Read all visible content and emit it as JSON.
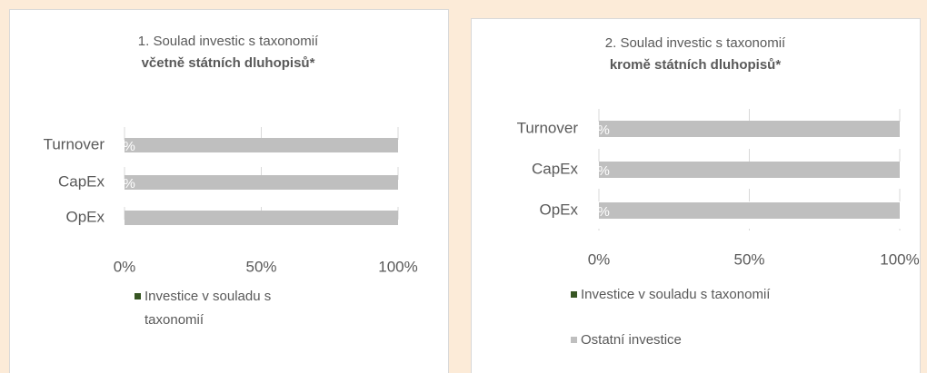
{
  "chart_data": [
    {
      "type": "bar",
      "orientation": "horizontal",
      "stacked": true,
      "title": "1. Soulad investic s taxonomií",
      "subtitle": "včetně státních dluhopisů*",
      "categories": [
        "Turnover",
        "CapEx",
        "OpEx"
      ],
      "series": [
        {
          "name": "Investice v souladu s taxonomií",
          "color": "#375623",
          "values": [
            0,
            0,
            0
          ],
          "value_labels": [
            "0%",
            "0%",
            null
          ]
        },
        {
          "color": "#bfbfbf",
          "values": [
            100,
            100,
            100
          ]
        }
      ],
      "xlim": [
        0,
        100
      ],
      "xticks": [
        {
          "value": 0,
          "label": "0%"
        },
        {
          "value": 50,
          "label": "50%"
        },
        {
          "value": 100,
          "label": "100%"
        }
      ],
      "grid": true,
      "legend": "bottom"
    },
    {
      "type": "bar",
      "orientation": "horizontal",
      "stacked": true,
      "title": "2. Soulad investic s taxonomií",
      "subtitle": "kromě státních dluhopisů*",
      "categories": [
        "Turnover",
        "CapEx",
        "OpEx"
      ],
      "series": [
        {
          "name": "Investice v souladu s taxonomií",
          "color": "#375623",
          "values": [
            0,
            0,
            0
          ],
          "value_labels": [
            "0%",
            "0%",
            "0%"
          ]
        },
        {
          "name": "Ostatní investice",
          "color": "#bfbfbf",
          "values": [
            100,
            100,
            100
          ]
        }
      ],
      "xlim": [
        0,
        100
      ],
      "xticks": [
        {
          "value": 0,
          "label": "0%"
        },
        {
          "value": 50,
          "label": "50%"
        },
        {
          "value": 100,
          "label": "100%"
        }
      ],
      "grid": true,
      "legend": "bottom"
    }
  ]
}
